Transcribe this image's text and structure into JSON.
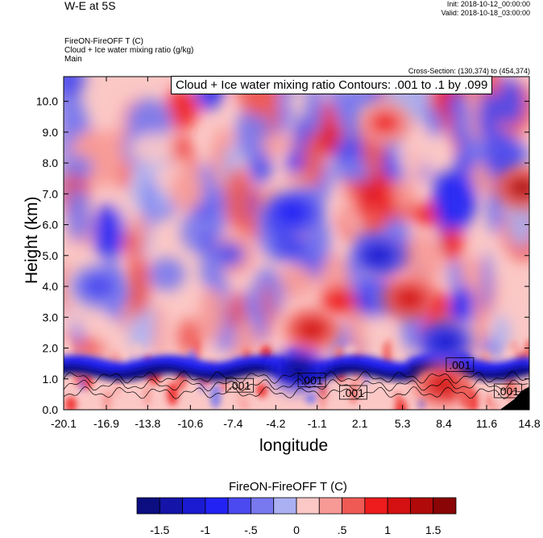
{
  "header": {
    "title": "W-E at 5S",
    "init": "Init: 2018-10-12_00:00:00",
    "valid": "Valid: 2018-10-18_03:00:00",
    "var_line1": "FireON-FireOFF T   (C)",
    "var_line2": "Cloud + Ice water mixing ratio   (g/kg)",
    "var_line3": "Main",
    "cross_section": "Cross-Section: (130,374) to (454,374)"
  },
  "contour_info": "Cloud + Ice water mixing ratio Contours: .001 to .1 by .099",
  "chart_data": {
    "type": "heatmap",
    "xlabel": "longitude",
    "ylabel": "Height (km)",
    "x_ticks": [
      "-20.1",
      "-16.9",
      "-13.8",
      "-10.6",
      "-7.4",
      "-4.2",
      "-1.1",
      "2.1",
      "5.3",
      "8.4",
      "11.6",
      "14.8"
    ],
    "y_ticks": [
      "0.0",
      "1.0",
      "2.0",
      "3.0",
      "4.0",
      "5.0",
      "6.0",
      "7.0",
      "8.0",
      "9.0",
      "10.0"
    ],
    "xlim": [
      -20.1,
      14.8
    ],
    "ylim": [
      0.0,
      10.8
    ],
    "contour_labels": [
      {
        "text": ".001",
        "lon": -6.9,
        "height": 0.78
      },
      {
        "text": ".001",
        "lon": -1.5,
        "height": 0.95
      },
      {
        "text": ".001",
        "lon": 1.6,
        "height": 0.55
      },
      {
        "text": ".001",
        "lon": 9.6,
        "height": 1.45
      },
      {
        "text": ".001",
        "lon": 13.2,
        "height": 0.6
      }
    ],
    "colorbar": {
      "title": "FireON-FireOFF T  (C)",
      "tick_labels": [
        "-1.5",
        "-1",
        "-.5",
        "0",
        ".5",
        "1",
        "1.5"
      ],
      "levels": [
        -1.75,
        -1.5,
        -1.25,
        -1.0,
        -0.75,
        -0.5,
        -0.25,
        0,
        0.25,
        0.5,
        0.75,
        1.0,
        1.25,
        1.5,
        1.75
      ],
      "colors": [
        "#0b0d80",
        "#1414a8",
        "#1a1ad0",
        "#2222f5",
        "#4a4af0",
        "#7878ef",
        "#aab0f2",
        "#fbc8c6",
        "#f79a96",
        "#f05a55",
        "#ee1c1c",
        "#d41010",
        "#b00a0a",
        "#8a0505"
      ]
    },
    "features": [
      {
        "type": "cold",
        "lon": -2.5,
        "height": 1.3,
        "value": -1.7
      },
      {
        "type": "cold",
        "lon": 8.5,
        "height": 2.2,
        "value": -1.2
      },
      {
        "type": "warm",
        "lon": -1.5,
        "height": 2.6,
        "value": 1.0
      },
      {
        "type": "warm",
        "lon": 5.8,
        "height": 3.6,
        "value": 1.0
      },
      {
        "type": "warm",
        "lon": 14.3,
        "height": 7.2,
        "value": 1.3
      },
      {
        "type": "warm",
        "lon": 8.3,
        "height": 0.8,
        "value": 1.0
      },
      {
        "type": "warm",
        "lon": 4.0,
        "height": 9.3,
        "value": 0.8
      },
      {
        "type": "cold",
        "lon": 3.5,
        "height": 5.0,
        "value": -1.2
      },
      {
        "type": "cold",
        "lon": -3.0,
        "height": 6.4,
        "value": -1.0
      },
      {
        "type": "cold",
        "lon": -17.5,
        "height": 4.0,
        "value": -0.7
      }
    ]
  }
}
